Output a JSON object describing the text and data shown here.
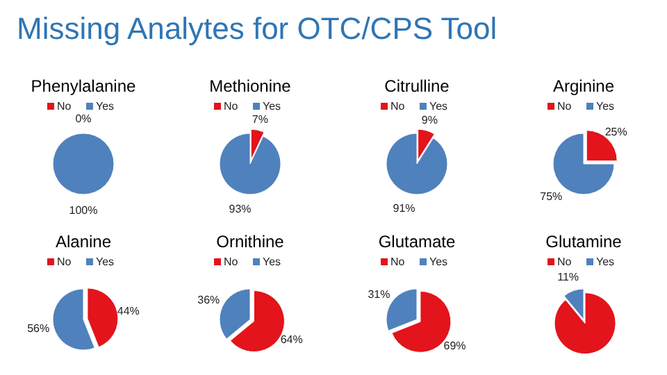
{
  "chart_data": [
    {
      "type": "other",
      "title": "Missing Analytes for OTC/CPS Tool"
    },
    {
      "type": "pie",
      "title": "Phenylalanine",
      "categories": [
        "No",
        "Yes"
      ],
      "values": [
        0,
        100
      ],
      "colors": [
        "#e3141b",
        "#4f81bd"
      ],
      "value_labels": [
        "0%",
        "100%"
      ],
      "legend": "top"
    },
    {
      "type": "pie",
      "title": "Methionine",
      "categories": [
        "No",
        "Yes"
      ],
      "values": [
        7,
        93
      ],
      "colors": [
        "#e3141b",
        "#4f81bd"
      ],
      "value_labels": [
        "7%",
        "93%"
      ],
      "legend": "top"
    },
    {
      "type": "pie",
      "title": "Citrulline",
      "categories": [
        "No",
        "Yes"
      ],
      "values": [
        9,
        91
      ],
      "colors": [
        "#e3141b",
        "#4f81bd"
      ],
      "value_labels": [
        "9%",
        "91%"
      ],
      "legend": "top"
    },
    {
      "type": "pie",
      "title": "Arginine",
      "categories": [
        "No",
        "Yes"
      ],
      "values": [
        25,
        75
      ],
      "colors": [
        "#e3141b",
        "#4f81bd"
      ],
      "value_labels": [
        "25%",
        "75%"
      ],
      "legend": "top"
    },
    {
      "type": "pie",
      "title": "Alanine",
      "categories": [
        "No",
        "Yes"
      ],
      "values": [
        44,
        56
      ],
      "colors": [
        "#e3141b",
        "#4f81bd"
      ],
      "value_labels": [
        "44%",
        "56%"
      ],
      "legend": "top"
    },
    {
      "type": "pie",
      "title": "Ornithine",
      "categories": [
        "No",
        "Yes"
      ],
      "values": [
        64,
        36
      ],
      "colors": [
        "#e3141b",
        "#4f81bd"
      ],
      "value_labels": [
        "64%",
        "36%"
      ],
      "legend": "top"
    },
    {
      "type": "pie",
      "title": "Glutamate",
      "categories": [
        "No",
        "Yes"
      ],
      "values": [
        69,
        31
      ],
      "colors": [
        "#e3141b",
        "#4f81bd"
      ],
      "value_labels": [
        "69%",
        "31%"
      ],
      "legend": "top"
    },
    {
      "type": "pie",
      "title": "Glutamine",
      "categories": [
        "No",
        "Yes"
      ],
      "values": [
        89,
        11
      ],
      "colors": [
        "#e3141b",
        "#4f81bd"
      ],
      "value_labels": [
        null,
        "11%"
      ],
      "legend": "top"
    }
  ]
}
